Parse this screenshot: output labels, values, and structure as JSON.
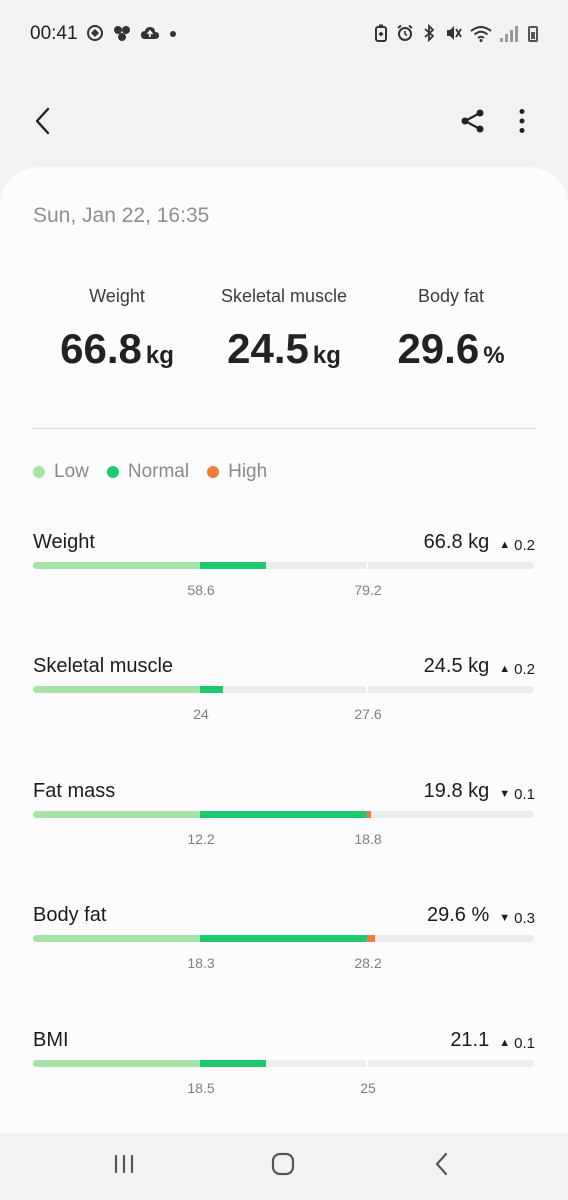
{
  "status_bar": {
    "time": "00:41",
    "left_icons": [
      "app-notification-icon",
      "social-app-icon",
      "cloud-sync-icon",
      "more-notifications-dot"
    ],
    "right_icons": [
      "battery-saver-icon",
      "alarm-icon",
      "bluetooth-icon",
      "vibrate-icon",
      "wifi-icon",
      "signal-icon",
      "battery-icon"
    ]
  },
  "app_bar": {
    "back_icon": "chevron-left",
    "share_icon": "share",
    "more_icon": "vertical-dots"
  },
  "card": {
    "date": "Sun, Jan 22, 16:35",
    "summary": [
      {
        "label": "Weight",
        "value": "66.8",
        "unit": "kg"
      },
      {
        "label": "Skeletal muscle",
        "value": "24.5",
        "unit": "kg"
      },
      {
        "label": "Body fat",
        "value": "29.6",
        "unit": "%"
      }
    ],
    "legend": [
      {
        "label": "Low",
        "color": "#a6e3a6"
      },
      {
        "label": "Normal",
        "color": "#1ec86e"
      },
      {
        "label": "High",
        "color": "#f07c3c"
      }
    ],
    "metrics": [
      {
        "name": "Weight",
        "value": "66.8 kg",
        "delta_dir": "up",
        "delta": "0.2",
        "low": "58.6",
        "high": "79.2",
        "level": 0.465
      },
      {
        "name": "Skeletal muscle",
        "value": "24.5 kg",
        "delta_dir": "up",
        "delta": "0.2",
        "low": "24",
        "high": "27.6",
        "level": 0.379
      },
      {
        "name": "Fat mass",
        "value": "19.8 kg",
        "delta_dir": "down",
        "delta": "0.1",
        "low": "12.2",
        "high": "18.8",
        "level": 0.675
      },
      {
        "name": "Body fat",
        "value": "29.6 %",
        "delta_dir": "down",
        "delta": "0.3",
        "low": "18.3",
        "high": "28.2",
        "level": 0.683
      },
      {
        "name": "BMI",
        "value": "21.1",
        "delta_dir": "up",
        "delta": "0.1",
        "low": "18.5",
        "high": "25",
        "level": 0.465
      }
    ]
  },
  "colors": {
    "low": "#a6e3a6",
    "normal": "#1ec86e",
    "high": "#f07c3c",
    "track": "#ececec"
  },
  "nav_bar": {
    "recents_icon": "recents",
    "home_icon": "home",
    "back_icon": "back"
  }
}
